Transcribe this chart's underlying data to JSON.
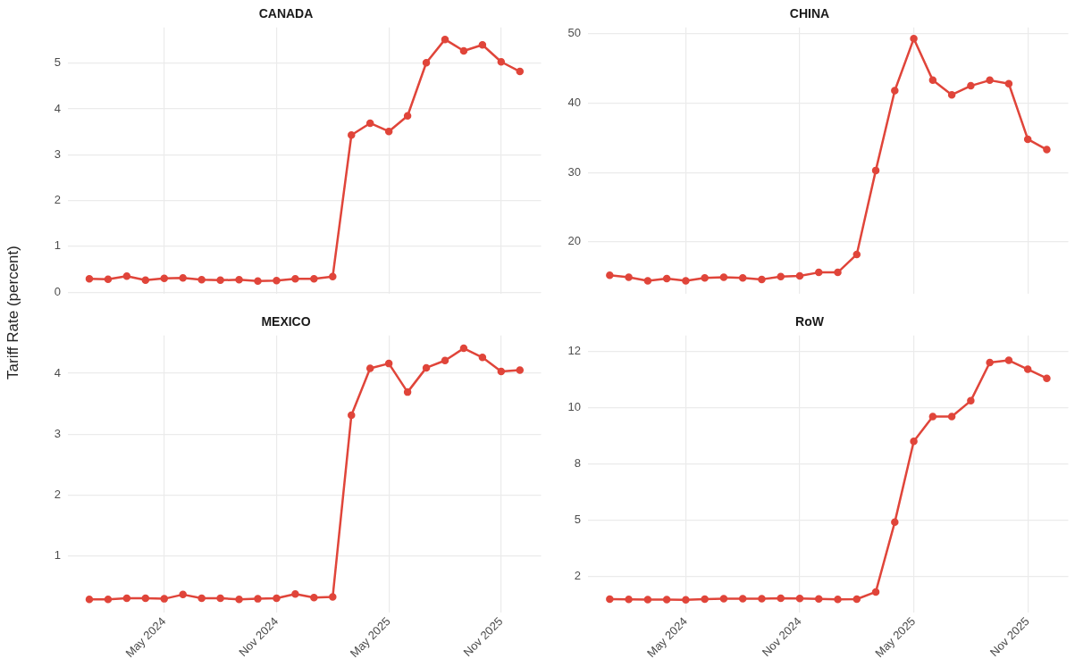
{
  "chart_data": [
    {
      "type": "line",
      "title": "CANADA",
      "ylabel": "Tariff Rate (percent)",
      "x": [
        "2024-01",
        "2024-02",
        "2024-03",
        "2024-04",
        "2024-05",
        "2024-06",
        "2024-07",
        "2024-08",
        "2024-09",
        "2024-10",
        "2024-11",
        "2024-12",
        "2025-01",
        "2025-02",
        "2025-03",
        "2025-04",
        "2025-05",
        "2025-06",
        "2025-07",
        "2025-08",
        "2025-09",
        "2025-10",
        "2025-11",
        "2025-12"
      ],
      "series": [
        {
          "color": "#e0453a",
          "values": [
            0.29,
            0.28,
            0.35,
            0.26,
            0.3,
            0.31,
            0.27,
            0.26,
            0.27,
            0.24,
            0.25,
            0.29,
            0.29,
            0.34,
            3.43,
            3.69,
            3.51,
            3.85,
            5.01,
            5.52,
            5.27,
            5.4,
            5.03,
            4.82
          ]
        }
      ],
      "xlim": [
        "2023-11-27",
        "2026-01-05"
      ],
      "xticks": [
        {
          "value": "2024-05",
          "label": null
        },
        {
          "value": "2024-11",
          "label": null
        },
        {
          "value": "2025-05",
          "label": null
        },
        {
          "value": "2025-11",
          "label": null
        }
      ],
      "ylim": [
        -0.04,
        5.78
      ],
      "yticks": [
        0,
        1,
        2,
        3,
        4,
        5
      ],
      "grid": true,
      "tick_labels": "y",
      "marker": "circle",
      "line_style": "solid",
      "legend": false
    },
    {
      "type": "line",
      "title": "CHINA",
      "x": [
        "2024-01",
        "2024-02",
        "2024-03",
        "2024-04",
        "2024-05",
        "2024-06",
        "2024-07",
        "2024-08",
        "2024-09",
        "2024-10",
        "2024-11",
        "2024-12",
        "2025-01",
        "2025-02",
        "2025-03",
        "2025-04",
        "2025-05",
        "2025-06",
        "2025-07",
        "2025-08",
        "2025-09",
        "2025-10",
        "2025-11",
        "2025-12"
      ],
      "series": [
        {
          "color": "#e0453a",
          "values": [
            15.2,
            14.9,
            14.4,
            14.7,
            14.4,
            14.8,
            14.9,
            14.8,
            14.6,
            15.0,
            15.1,
            15.6,
            15.6,
            18.2,
            30.3,
            41.8,
            49.3,
            43.3,
            41.2,
            42.5,
            43.3,
            42.8,
            34.8,
            33.3
          ]
        }
      ],
      "xlim": [
        "2023-11-27",
        "2026-01-05"
      ],
      "xticks": [
        {
          "value": "2024-05",
          "label": null
        },
        {
          "value": "2024-11",
          "label": null
        },
        {
          "value": "2025-05",
          "label": null
        },
        {
          "value": "2025-11",
          "label": null
        }
      ],
      "ylim": [
        12.5,
        50.9
      ],
      "yticks": [
        20,
        30,
        40,
        50
      ],
      "grid": true,
      "tick_labels": "y",
      "marker": "circle",
      "line_style": "solid",
      "legend": false
    },
    {
      "type": "line",
      "title": "MEXICO",
      "x": [
        "2024-01",
        "2024-02",
        "2024-03",
        "2024-04",
        "2024-05",
        "2024-06",
        "2024-07",
        "2024-08",
        "2024-09",
        "2024-10",
        "2024-11",
        "2024-12",
        "2025-01",
        "2025-02",
        "2025-03",
        "2025-04",
        "2025-05",
        "2025-06",
        "2025-07",
        "2025-08",
        "2025-09",
        "2025-10",
        "2025-11",
        "2025-12"
      ],
      "series": [
        {
          "color": "#e0453a",
          "values": [
            0.28,
            0.28,
            0.3,
            0.3,
            0.29,
            0.36,
            0.3,
            0.3,
            0.28,
            0.29,
            0.3,
            0.37,
            0.31,
            0.32,
            3.31,
            4.08,
            4.16,
            3.69,
            4.09,
            4.21,
            4.41,
            4.26,
            4.03,
            4.05
          ]
        }
      ],
      "xlim": [
        "2023-11-27",
        "2026-01-05"
      ],
      "xticks": [
        {
          "value": "2024-05",
          "label": "May 2024"
        },
        {
          "value": "2024-11",
          "label": "Nov 2024"
        },
        {
          "value": "2025-05",
          "label": "May 2025"
        },
        {
          "value": "2025-11",
          "label": "Nov 2025"
        }
      ],
      "ylim": [
        0.07,
        4.62
      ],
      "yticks": [
        1,
        2,
        3,
        4
      ],
      "grid": true,
      "marker": "circle",
      "line_style": "solid",
      "legend": false
    },
    {
      "type": "line",
      "title": "RoW",
      "x": [
        "2024-01",
        "2024-02",
        "2024-03",
        "2024-04",
        "2024-05",
        "2024-06",
        "2024-07",
        "2024-08",
        "2024-09",
        "2024-10",
        "2024-11",
        "2024-12",
        "2025-01",
        "2025-02",
        "2025-03",
        "2025-04",
        "2025-05",
        "2025-06",
        "2025-07",
        "2025-08",
        "2025-09",
        "2025-10",
        "2025-11",
        "2025-12"
      ],
      "series": [
        {
          "color": "#e0453a",
          "values": [
            1.48,
            1.47,
            1.46,
            1.46,
            1.45,
            1.48,
            1.5,
            1.5,
            1.5,
            1.52,
            1.51,
            1.49,
            1.47,
            1.48,
            1.8,
            4.9,
            8.5,
            9.6,
            9.6,
            10.3,
            12.0,
            12.1,
            11.7,
            11.3
          ]
        }
      ],
      "xlim": [
        "2023-11-27",
        "2026-01-05"
      ],
      "xticks": [
        {
          "value": "2024-05",
          "label": "May 2024"
        },
        {
          "value": "2024-11",
          "label": "Nov 2024"
        },
        {
          "value": "2025-05",
          "label": "May 2025"
        },
        {
          "value": "2025-11",
          "label": "Nov 2025"
        }
      ],
      "ylim": [
        0.9,
        13.2
      ],
      "yticks": [
        {
          "value": 2.5,
          "label": "2"
        },
        {
          "value": 5,
          "label": "5"
        },
        {
          "value": 7.5,
          "label": "8"
        },
        {
          "value": 10,
          "label": "10"
        },
        {
          "value": 12.5,
          "label": "12"
        }
      ],
      "grid": true,
      "marker": "circle",
      "line_style": "solid",
      "legend": false
    }
  ]
}
